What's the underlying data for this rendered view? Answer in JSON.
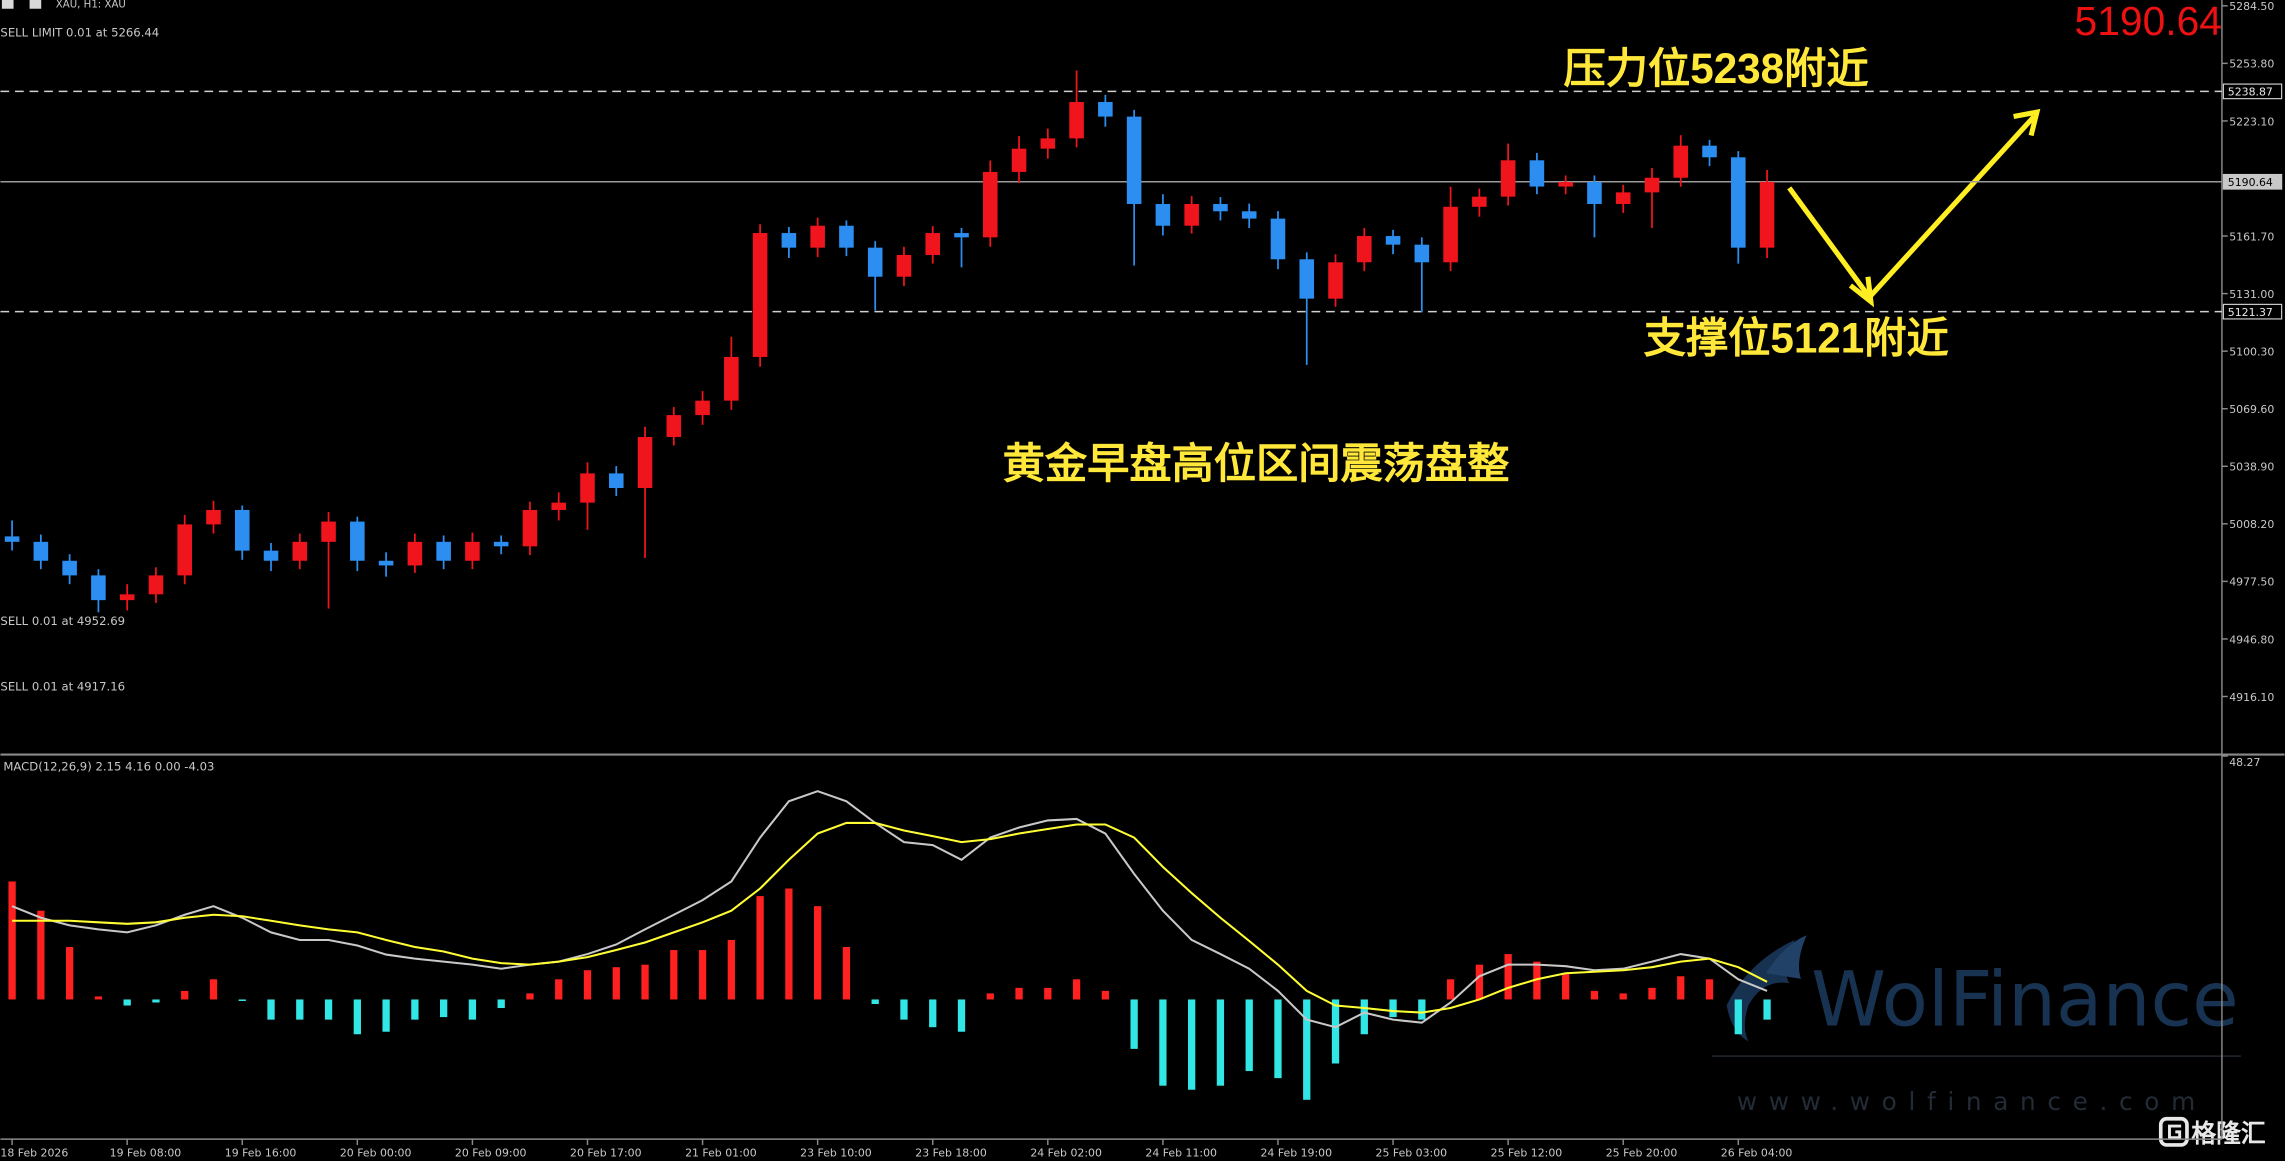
{
  "header": {
    "symbol": "XAU, H1: XAU",
    "orders": [
      "SELL LIMIT 0.01 at 5266.44",
      "SELL 0.01 at 4952.69",
      "SELL 0.01 at 4917.16"
    ]
  },
  "chart_data": [
    {
      "type": "candlestick",
      "categories": [
        "18 Feb 2026",
        null,
        null,
        null,
        "19 Feb 08:00",
        null,
        null,
        null,
        "19 Feb 16:00",
        null,
        null,
        null,
        "20 Feb 00:00",
        null,
        null,
        null,
        "20 Feb 09:00",
        null,
        null,
        null,
        "20 Feb 17:00",
        null,
        null,
        null,
        "21 Feb 01:00",
        null,
        null,
        null,
        "23 Feb 10:00",
        null,
        null,
        null,
        "23 Feb 18:00",
        null,
        null,
        null,
        "24 Feb 02:00",
        null,
        null,
        null,
        "24 Feb 11:00",
        null,
        null,
        null,
        "24 Feb 19:00",
        null,
        null,
        null,
        "25 Feb 03:00",
        null,
        null,
        null,
        "25 Feb 12:00",
        null,
        null,
        null,
        "25 Feb 20:00",
        null,
        null,
        null,
        "26 Feb 04:00",
        null
      ],
      "open": [
        5001.5,
        4998.6,
        4988.5,
        4980.7,
        4967.5,
        4970.6,
        4980.7,
        5007.9,
        5015.6,
        4993.9,
        4988.5,
        4998.6,
        5009.4,
        4988.5,
        4986.0,
        4998.6,
        4988.5,
        4998.6,
        4996.2,
        5015.6,
        5019.5,
        5035.1,
        5027.3,
        5054.5,
        5066.2,
        5073.9,
        5097.2,
        5163.3,
        5155.5,
        5167.2,
        5155.5,
        5140.0,
        5151.6,
        5163.3,
        5161.0,
        5195.9,
        5208.3,
        5213.8,
        5233.2,
        5225.4,
        5178.8,
        5167.2,
        5178.8,
        5174.9,
        5171.0,
        5149.3,
        5128.3,
        5147.7,
        5161.7,
        5157.1,
        5147.7,
        5177.3,
        5182.7,
        5202.1,
        5188.1,
        5190.5,
        5178.8,
        5185.0,
        5192.8,
        5209.9,
        5203.7,
        5155.5
      ],
      "high": [
        5010.0,
        5002.5,
        4992.0,
        4984.0,
        4976.0,
        4985.0,
        5013.0,
        5020.5,
        5018.0,
        4998.0,
        5003.0,
        5014.5,
        5012.0,
        4993.0,
        5003.0,
        5002.0,
        5003.5,
        5002.0,
        5020.0,
        5025.0,
        5041.0,
        5039.0,
        5060.0,
        5070.5,
        5079.0,
        5108.0,
        5168.0,
        5166.5,
        5171.5,
        5170.0,
        5159.0,
        5156.0,
        5167.0,
        5166.0,
        5202.0,
        5215.0,
        5219.0,
        5250.0,
        5237.0,
        5229.0,
        5184.0,
        5183.0,
        5182.5,
        5179.0,
        5175.0,
        5153.0,
        5152.0,
        5166.0,
        5165.0,
        5161.0,
        5188.0,
        5187.0,
        5211.0,
        5206.0,
        5194.0,
        5194.0,
        5189.0,
        5198.0,
        5215.5,
        5213.0,
        5207.0,
        5197.0
      ],
      "low": [
        4994.0,
        4984.0,
        4976.0,
        4961.0,
        4962.0,
        4966.0,
        4976.0,
        5003.0,
        4989.0,
        4983.0,
        4984.0,
        4963.0,
        4983.0,
        4980.0,
        4982.0,
        4984.0,
        4984.0,
        4992.0,
        4991.5,
        5010.0,
        5005.0,
        5023.0,
        4990.0,
        5050.0,
        5061.0,
        5069.0,
        5092.0,
        5150.0,
        5150.5,
        5151.0,
        5122.0,
        5135.0,
        5147.0,
        5145.0,
        5156.0,
        5190.0,
        5203.0,
        5209.0,
        5220.0,
        5146.0,
        5162.0,
        5163.0,
        5170.0,
        5166.0,
        5144.0,
        5093.0,
        5124.0,
        5143.0,
        5152.0,
        5121.0,
        5143.0,
        5172.0,
        5178.0,
        5184.0,
        5184.0,
        5161.0,
        5174.0,
        5166.0,
        5188.0,
        5199.0,
        5147.0,
        5150.0
      ],
      "close": [
        4998.6,
        4988.5,
        4980.7,
        4967.5,
        4970.6,
        4980.7,
        5007.9,
        5015.6,
        4993.9,
        4988.5,
        4998.6,
        5009.4,
        4988.5,
        4986.0,
        4998.6,
        4988.5,
        4998.6,
        4996.2,
        5015.6,
        5019.5,
        5035.1,
        5027.3,
        5054.5,
        5066.2,
        5073.9,
        5097.2,
        5163.3,
        5155.5,
        5167.2,
        5155.5,
        5140.0,
        5151.6,
        5163.3,
        5161.0,
        5195.9,
        5208.3,
        5213.8,
        5233.2,
        5225.4,
        5178.8,
        5167.2,
        5178.8,
        5174.9,
        5171.0,
        5149.3,
        5128.3,
        5147.7,
        5161.7,
        5157.1,
        5147.7,
        5177.3,
        5182.7,
        5202.1,
        5188.1,
        5190.5,
        5178.8,
        5185.0,
        5192.8,
        5209.9,
        5203.7,
        5155.5,
        5190.6
      ],
      "up_color": "#f0141c",
      "down_color": "#2b8ef0",
      "ylim": [
        4885.9,
        5287.6
      ],
      "yticks": [
        {
          "value": 5284.5,
          "label": "5284.50"
        },
        {
          "value": 5253.8,
          "label": "5253.80"
        },
        {
          "value": 5223.1,
          "label": "5223.10"
        },
        {
          "value": 5161.7,
          "label": "5161.70"
        },
        {
          "value": 5131.0,
          "label": "5131.00"
        },
        {
          "value": 5100.3,
          "label": "5100.30"
        },
        {
          "value": 5069.6,
          "label": "5069.60"
        },
        {
          "value": 5038.9,
          "label": "5038.90"
        },
        {
          "value": 5008.2,
          "label": "5008.20"
        },
        {
          "value": 4977.5,
          "label": "4977.50"
        },
        {
          "value": 4946.8,
          "label": "4946.80"
        },
        {
          "value": 4916.1,
          "label": "4916.10"
        }
      ],
      "price_lines": [
        5238.87,
        5190.64,
        5121.37
      ],
      "price_line_styles": [
        "dashed",
        "solid",
        "dashed"
      ],
      "annotations": [
        [
          "压力位",
          "5238",
          "附近"
        ],
        [
          "支撑位",
          "5121",
          "附近"
        ],
        [
          "黄金早盘高位区间震荡盘整"
        ]
      ]
    },
    {
      "type": "macd",
      "title": "MACD(12,26,9) 2.15 4.16 0.00 -4.03",
      "ylim": [
        -27.7,
        48.27
      ],
      "yticks": [
        48.27
      ],
      "histogram": {
        "up_color": "#ff2020",
        "down_color": "#33e6e6",
        "values": [
          23.4,
          17.6,
          10.4,
          0.6,
          -1.2,
          -0.6,
          1.7,
          4.0,
          -0.3,
          -4.0,
          -4.0,
          -4.0,
          -6.9,
          -6.4,
          -4.0,
          -3.5,
          -4.0,
          -1.7,
          1.2,
          4.0,
          5.8,
          6.4,
          6.9,
          9.8,
          9.8,
          11.8,
          20.5,
          22.0,
          18.5,
          10.4,
          -0.9,
          -4.0,
          -5.5,
          -6.4,
          1.2,
          2.3,
          2.3,
          4.0,
          1.7,
          -9.8,
          -17.1,
          -17.9,
          -17.1,
          -14.2,
          -15.6,
          -19.9,
          -12.7,
          -6.9,
          -3.5,
          -4.0,
          4.0,
          6.9,
          9.0,
          7.5,
          5.2,
          1.7,
          1.2,
          2.3,
          4.6,
          4.0,
          -6.9,
          -4.0
        ]
      },
      "series": [
        {
          "color": "#c8c8c8",
          "values": [
            18.5,
            16.2,
            14.7,
            13.9,
            13.3,
            14.7,
            16.8,
            18.5,
            16.2,
            13.3,
            11.8,
            11.8,
            10.7,
            8.9,
            8.1,
            7.5,
            6.9,
            6.1,
            6.9,
            7.5,
            9.0,
            10.9,
            13.9,
            16.8,
            19.7,
            23.4,
            32.1,
            39.3,
            41.3,
            39.3,
            35.0,
            31.2,
            30.6,
            27.7,
            32.1,
            34.1,
            35.5,
            35.8,
            32.9,
            24.9,
            17.6,
            11.8,
            9.0,
            6.1,
            1.7,
            -4.0,
            -5.5,
            -2.6,
            -4.0,
            -4.6,
            -0.6,
            4.6,
            6.9,
            6.9,
            6.6,
            5.8,
            6.1,
            7.5,
            9.0,
            8.1,
            4.0,
            1.7
          ]
        },
        {
          "color": "#ffff33",
          "values": [
            15.6,
            15.6,
            15.6,
            15.3,
            15.0,
            15.3,
            16.2,
            16.8,
            16.5,
            15.6,
            14.7,
            13.9,
            13.3,
            11.8,
            10.4,
            9.5,
            8.1,
            7.2,
            6.9,
            7.5,
            8.4,
            9.8,
            11.3,
            13.3,
            15.3,
            17.6,
            22.0,
            27.7,
            32.9,
            35.0,
            35.0,
            33.5,
            32.4,
            31.2,
            31.8,
            32.9,
            33.8,
            34.7,
            34.7,
            32.1,
            26.3,
            21.1,
            16.2,
            11.6,
            6.9,
            1.7,
            -1.2,
            -1.7,
            -2.3,
            -2.6,
            -1.7,
            0.0,
            2.3,
            4.0,
            5.2,
            5.5,
            5.8,
            6.4,
            7.5,
            8.1,
            6.4,
            3.5
          ]
        }
      ]
    }
  ],
  "watermark": {
    "brand": "WolFinance",
    "url": "www.wolfinance.com",
    "logo": "格隆汇"
  }
}
